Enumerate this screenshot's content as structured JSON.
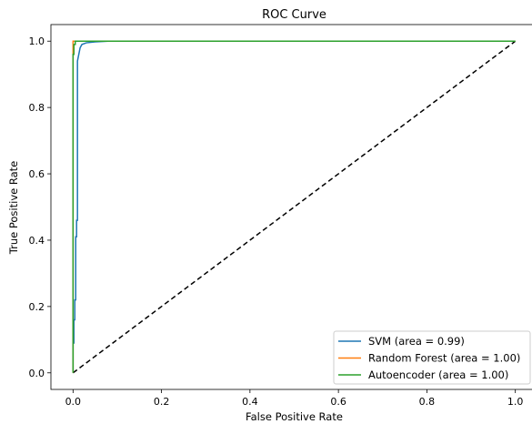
{
  "chart_data": {
    "type": "line",
    "title": "ROC Curve",
    "xlabel": "False Positive Rate",
    "ylabel": "True Positive Rate",
    "xlim": [
      -0.05,
      1.05
    ],
    "ylim": [
      -0.05,
      1.05
    ],
    "xticks": [
      "0.0",
      "0.2",
      "0.4",
      "0.6",
      "0.8",
      "1.0"
    ],
    "yticks": [
      "0.0",
      "0.2",
      "0.4",
      "0.6",
      "0.8",
      "1.0"
    ],
    "grid": false,
    "legend_position": "lower right",
    "series": [
      {
        "name": "SVM (area = 0.99)",
        "color": "#1f77b4",
        "x": [
          0.0,
          0.0,
          0.002,
          0.002,
          0.004,
          0.004,
          0.006,
          0.006,
          0.008,
          0.008,
          0.01,
          0.01,
          0.013,
          0.016,
          0.02,
          0.03,
          0.05,
          0.08,
          1.0
        ],
        "y": [
          0.0,
          0.09,
          0.09,
          0.16,
          0.16,
          0.22,
          0.22,
          0.41,
          0.41,
          0.46,
          0.46,
          0.94,
          0.96,
          0.98,
          0.99,
          0.995,
          0.998,
          1.0,
          1.0
        ]
      },
      {
        "name": "Random Forest (area = 1.00)",
        "color": "#ff7f0e",
        "x": [
          0.0,
          0.0,
          1.0
        ],
        "y": [
          0.0,
          1.0,
          1.0
        ]
      },
      {
        "name": "Autoencoder (area = 1.00)",
        "color": "#2ca02c",
        "x": [
          0.0,
          0.0,
          0.002,
          0.002,
          0.005,
          0.005,
          1.0
        ],
        "y": [
          0.0,
          0.96,
          0.96,
          0.99,
          0.99,
          1.0,
          1.0
        ]
      }
    ],
    "reference_line": {
      "style": "dashed",
      "color": "#000000",
      "x": [
        0,
        1
      ],
      "y": [
        0,
        1
      ]
    }
  }
}
